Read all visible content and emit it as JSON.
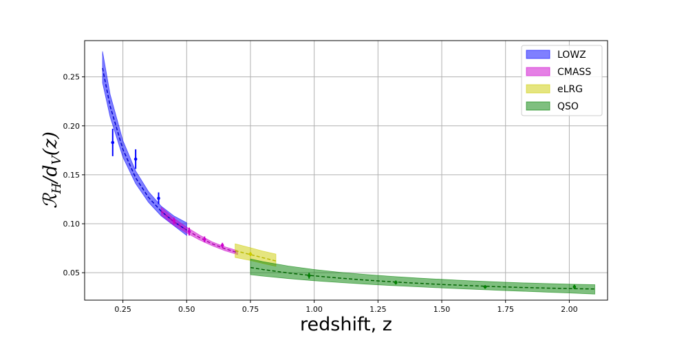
{
  "chart_data": {
    "type": "line",
    "title": "",
    "xlabel": "redshift, z",
    "ylabel": "ℛ_H/d_V(z)",
    "ylabel_parts": {
      "main": "ℛ",
      "sub1": "H",
      "mid": "/d",
      "sub2": "V",
      "tail": "(z)"
    },
    "xlim": [
      0.1,
      2.15
    ],
    "ylim": [
      0.022,
      0.287
    ],
    "xticks": [
      0.25,
      0.5,
      0.75,
      1.0,
      1.25,
      1.5,
      1.75,
      2.0
    ],
    "xtick_labels": [
      "0.25",
      "0.50",
      "0.75",
      "1.00",
      "1.25",
      "1.50",
      "1.75",
      "2.00"
    ],
    "yticks": [
      0.05,
      0.1,
      0.15,
      0.2,
      0.25
    ],
    "ytick_labels": [
      "0.05",
      "0.10",
      "0.15",
      "0.20",
      "0.25"
    ],
    "grid": true,
    "legend_position": "top-right",
    "model_curve": {
      "x": [
        0.17,
        0.2,
        0.25,
        0.3,
        0.35,
        0.4,
        0.45,
        0.5,
        0.55,
        0.6,
        0.65,
        0.7,
        0.75,
        0.8,
        0.85,
        0.9,
        1.0,
        1.1,
        1.2,
        1.3,
        1.4,
        1.5,
        1.6,
        1.7,
        1.8,
        1.9,
        2.0,
        2.1
      ],
      "y": [
        0.259,
        0.22,
        0.176,
        0.147,
        0.127,
        0.1128,
        0.102,
        0.0935,
        0.086,
        0.0795,
        0.0745,
        0.0705,
        0.0553,
        0.0532,
        0.0513,
        0.0497,
        0.0468,
        0.0445,
        0.0425,
        0.0408,
        0.0393,
        0.038,
        0.0369,
        0.0359,
        0.0351,
        0.0344,
        0.0338,
        0.0334
      ]
    },
    "series": [
      {
        "name": "LOWZ",
        "color": "#0000ff",
        "band": {
          "x": [
            0.17,
            0.2,
            0.25,
            0.3,
            0.35,
            0.4,
            0.45,
            0.5
          ],
          "y": [
            0.259,
            0.22,
            0.176,
            0.147,
            0.127,
            0.1128,
            0.102,
            0.0935
          ],
          "lower": [
            0.244,
            0.209,
            0.168,
            0.141,
            0.122,
            0.108,
            0.098,
            0.088
          ],
          "upper": [
            0.276,
            0.232,
            0.185,
            0.154,
            0.133,
            0.118,
            0.108,
            0.101
          ]
        },
        "points": {
          "x": [
            0.21,
            0.3,
            0.39
          ],
          "y": [
            0.183,
            0.166,
            0.126
          ],
          "err": [
            0.014,
            0.01,
            0.006
          ]
        }
      },
      {
        "name": "CMASS",
        "color": "#cc00cc",
        "band": {
          "x": [
            0.4,
            0.45,
            0.5,
            0.55,
            0.6,
            0.65,
            0.7
          ],
          "y": [
            0.1128,
            0.102,
            0.0935,
            0.086,
            0.0795,
            0.0745,
            0.0705
          ],
          "lower": [
            0.109,
            0.0985,
            0.0905,
            0.0835,
            0.0775,
            0.0725,
            0.0685
          ],
          "upper": [
            0.117,
            0.1055,
            0.0965,
            0.0885,
            0.0815,
            0.0765,
            0.0725
          ]
        },
        "points": {
          "x": [
            0.45,
            0.51,
            0.57,
            0.64
          ],
          "y": [
            0.103,
            0.092,
            0.084,
            0.078
          ],
          "err": [
            0.0035,
            0.004,
            0.003,
            0.0025
          ]
        }
      },
      {
        "name": "eLRG",
        "color": "#cccc00",
        "band": {
          "x": [
            0.69,
            0.75,
            0.8,
            0.85
          ],
          "y": [
            0.0725,
            0.0685,
            0.0652,
            0.062
          ],
          "lower": [
            0.0655,
            0.0625,
            0.0595,
            0.0565
          ],
          "upper": [
            0.0795,
            0.0755,
            0.072,
            0.069
          ]
        },
        "points": {
          "x": [
            0.75
          ],
          "y": [
            0.069
          ],
          "err": [
            0.002
          ]
        }
      },
      {
        "name": "QSO",
        "color": "#008000",
        "band": {
          "x": [
            0.75,
            0.8,
            0.9,
            1.0,
            1.1,
            1.2,
            1.3,
            1.4,
            1.5,
            1.6,
            1.7,
            1.8,
            1.9,
            2.0,
            2.1
          ],
          "y": [
            0.0553,
            0.0532,
            0.0497,
            0.0468,
            0.0445,
            0.0425,
            0.0408,
            0.0393,
            0.038,
            0.0369,
            0.0359,
            0.0351,
            0.0344,
            0.0338,
            0.0334
          ],
          "lower": [
            0.048,
            0.0465,
            0.044,
            0.0418,
            0.04,
            0.0384,
            0.037,
            0.0357,
            0.0345,
            0.0334,
            0.0323,
            0.0313,
            0.0303,
            0.0293,
            0.0282
          ],
          "upper": [
            0.064,
            0.0612,
            0.0568,
            0.0533,
            0.0505,
            0.0482,
            0.0463,
            0.0446,
            0.0432,
            0.0419,
            0.0408,
            0.0398,
            0.039,
            0.0383,
            0.0378
          ]
        },
        "points": {
          "x": [
            0.98,
            1.32,
            1.67,
            2.02
          ],
          "y": [
            0.047,
            0.04,
            0.0355,
            0.0355
          ],
          "err": [
            0.003,
            0.002,
            0.0018,
            0.0022
          ]
        }
      }
    ]
  }
}
